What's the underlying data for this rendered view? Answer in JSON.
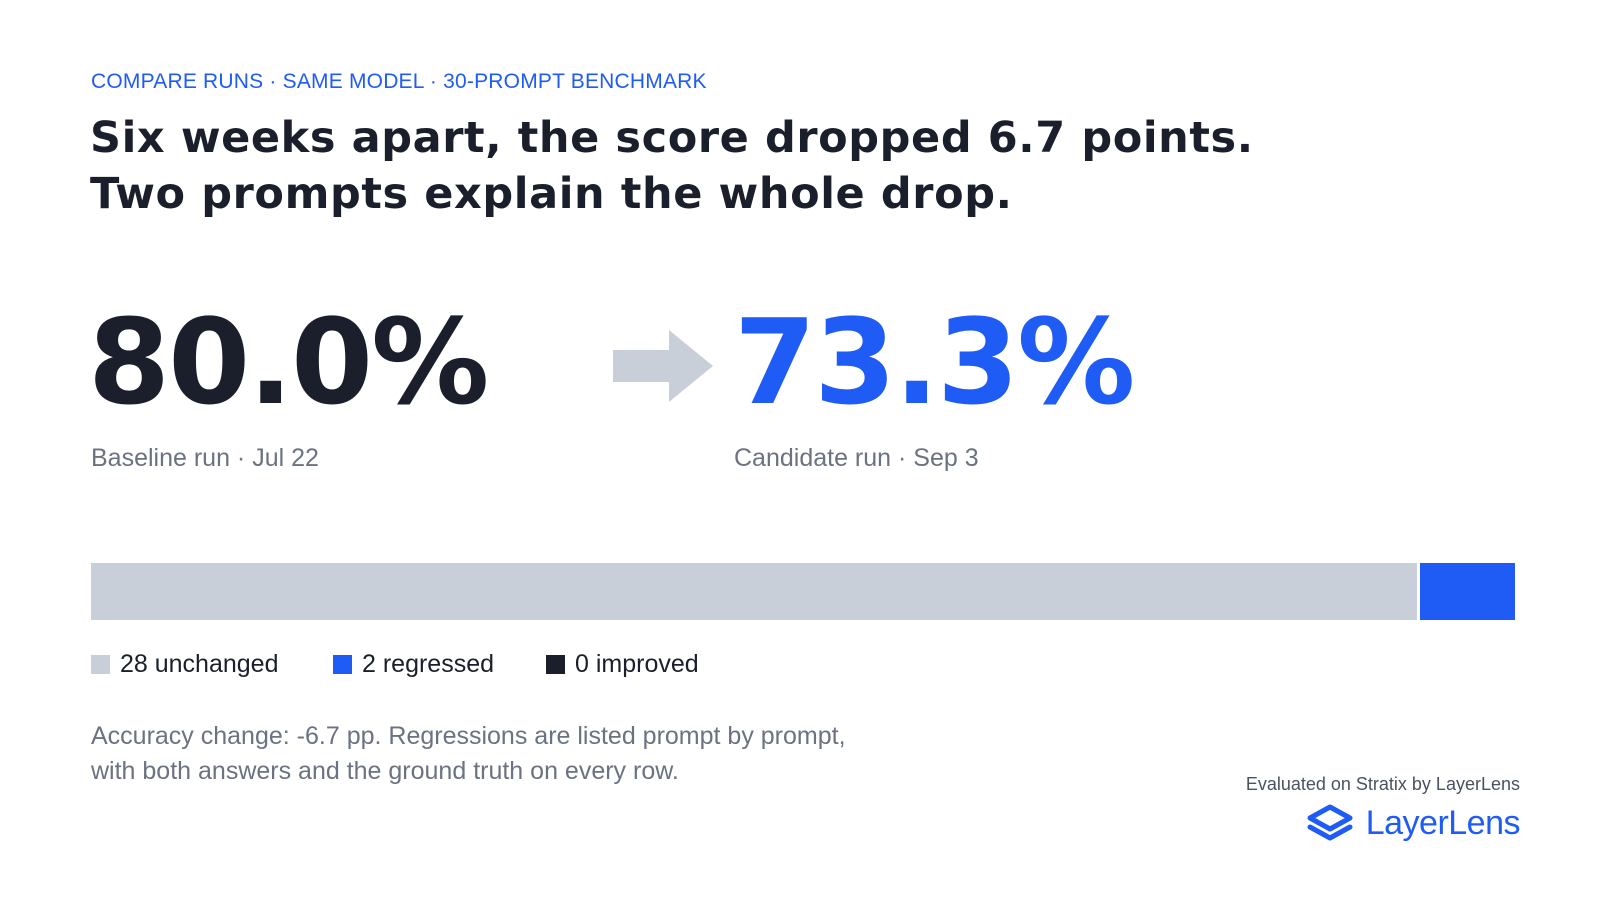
{
  "eyebrow": "COMPARE RUNS · SAME MODEL · 30-PROMPT BENCHMARK",
  "headline": {
    "line1": "Six weeks apart, the score dropped 6.7 points.",
    "line2": "Two prompts explain the whole drop."
  },
  "baseline": {
    "score": "80.0%",
    "label": "Baseline run · Jul 22"
  },
  "candidate": {
    "score": "73.3%",
    "label": "Candidate run · Sep 3"
  },
  "arrow_icon": "arrow-right-icon",
  "breakdown": {
    "total": 30,
    "unchanged": 28,
    "regressed": 2,
    "improved": 0
  },
  "legend": {
    "unchanged": "28 unchanged",
    "regressed": "2 regressed",
    "improved": "0 improved"
  },
  "note": {
    "line1": "Accuracy change: -6.7 pp. Regressions are listed prompt by prompt,",
    "line2": "with both answers and the ground truth on every row."
  },
  "footer": {
    "evaluated": "Evaluated on Stratix by LayerLens",
    "brand": "LayerLens",
    "logo_icon": "layers-logo-icon"
  },
  "colors": {
    "accent": "#1f5bf5",
    "dark": "#1a1f2b",
    "muted": "#6b7280",
    "unchanged": "#c8cfd9",
    "arrow": "#c8cfd9"
  }
}
